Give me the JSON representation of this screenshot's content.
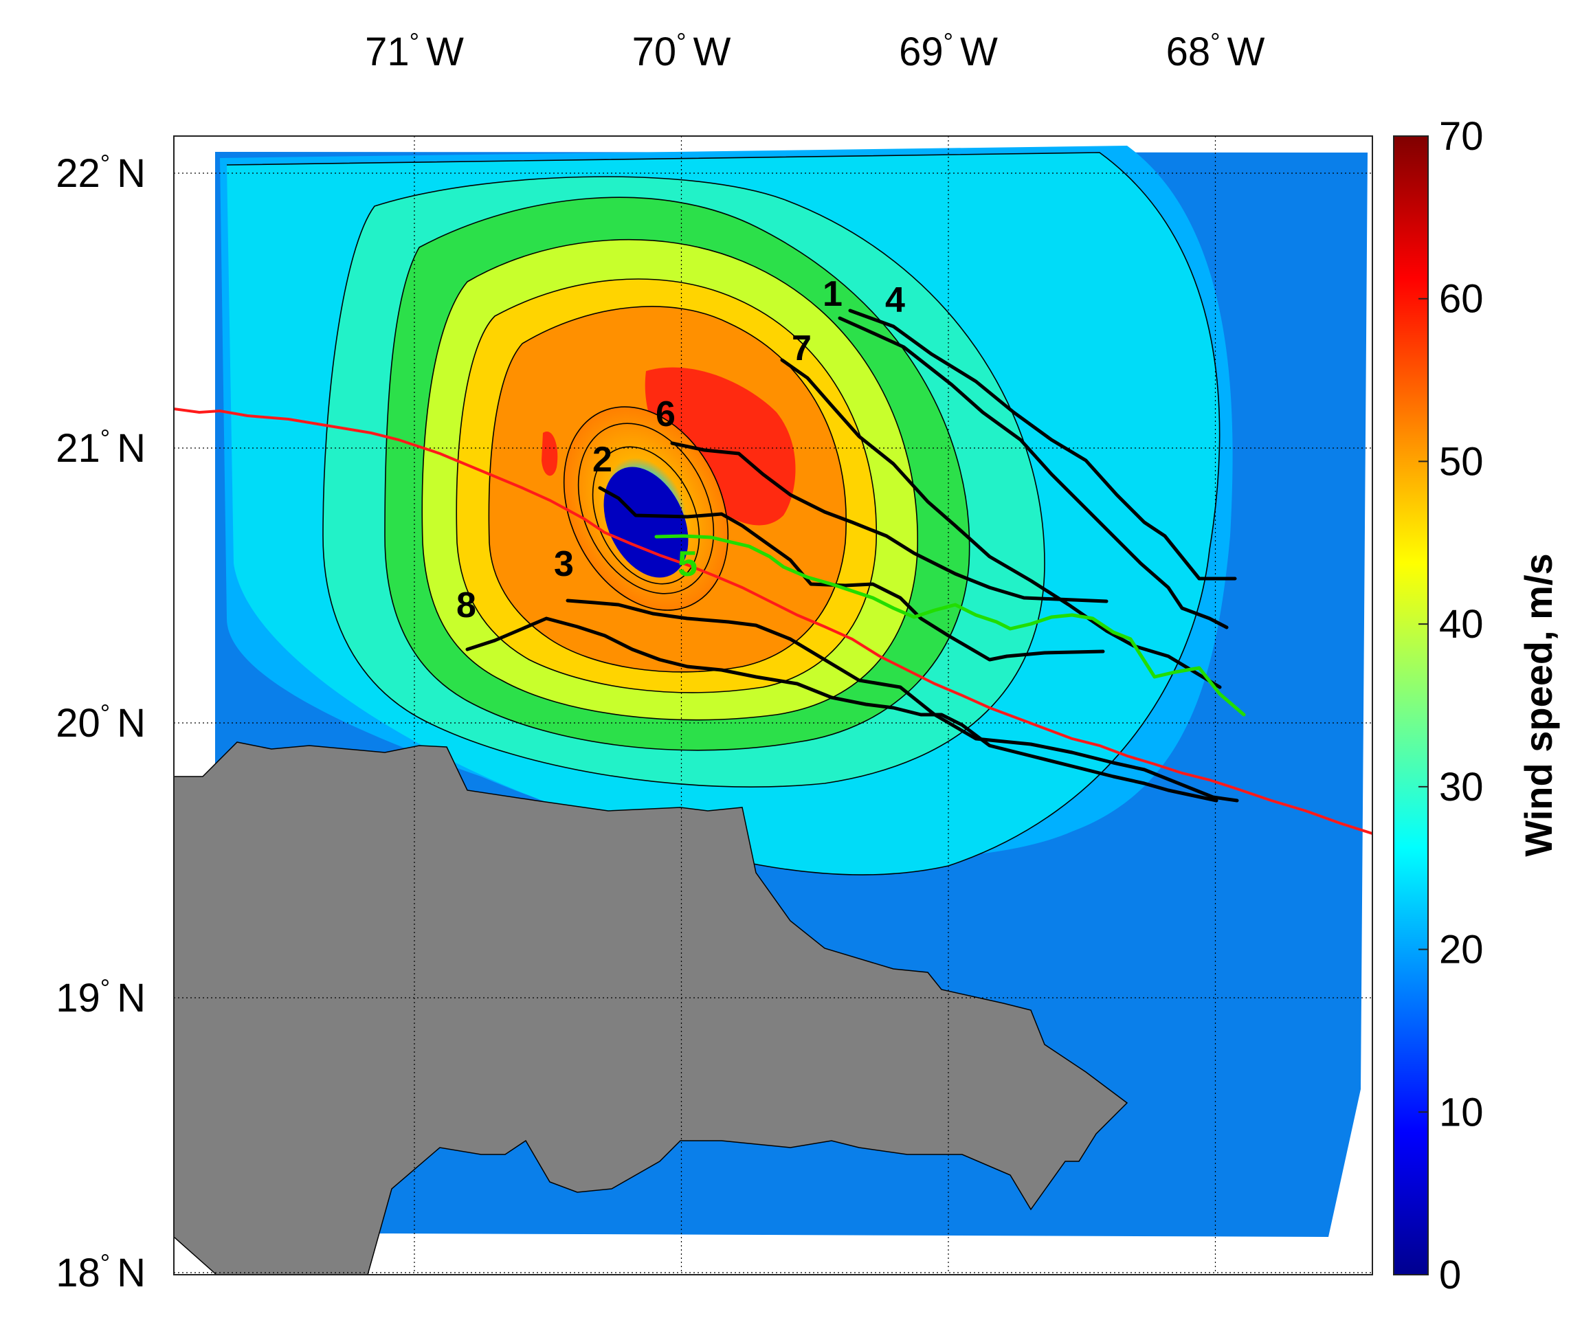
{
  "map": {
    "lon_ticks": [
      {
        "value": -71,
        "text": "71",
        "hemi": "W"
      },
      {
        "value": -70,
        "text": "70",
        "hemi": "W"
      },
      {
        "value": -69,
        "text": "69",
        "hemi": "W"
      },
      {
        "value": -68,
        "text": "68",
        "hemi": "W"
      }
    ],
    "lat_ticks": [
      {
        "value": 22,
        "text": "22",
        "hemi": "N"
      },
      {
        "value": 21,
        "text": "21",
        "hemi": "N"
      },
      {
        "value": 20,
        "text": "20",
        "hemi": "N"
      },
      {
        "value": 19,
        "text": "19",
        "hemi": "N"
      },
      {
        "value": 18,
        "text": "18",
        "hemi": "N"
      }
    ],
    "degree_symbol": "°",
    "land_color": "#808080"
  },
  "colorbar": {
    "label": "Wind speed, m/s",
    "ticks": [
      "0",
      "10",
      "20",
      "30",
      "40",
      "50",
      "60",
      "70"
    ],
    "min": 0,
    "max": 70,
    "colormap": "jet"
  },
  "storm_track": {
    "color": "#ff1a1a"
  },
  "flight_legs": [
    {
      "id": "1",
      "color": "#000000"
    },
    {
      "id": "2",
      "color": "#000000"
    },
    {
      "id": "3",
      "color": "#000000"
    },
    {
      "id": "4",
      "color": "#000000"
    },
    {
      "id": "5",
      "color": "#22dd00"
    },
    {
      "id": "6",
      "color": "#000000"
    },
    {
      "id": "7",
      "color": "#000000"
    },
    {
      "id": "8",
      "color": "#000000"
    }
  ]
}
